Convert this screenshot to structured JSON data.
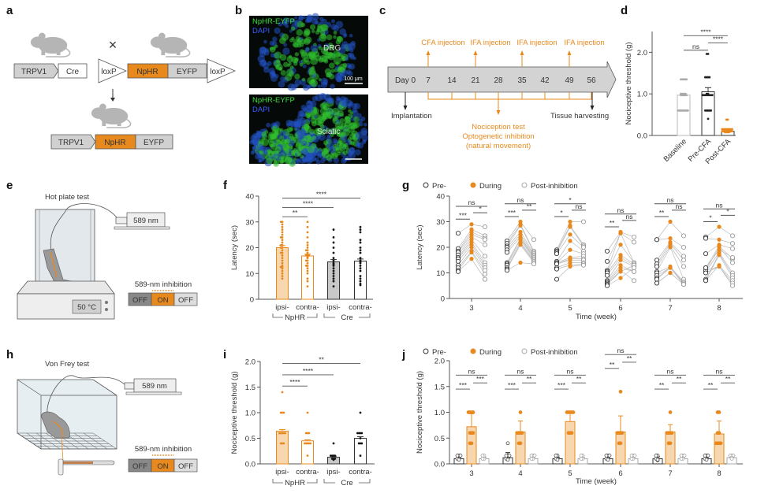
{
  "colors": {
    "orange": "#E8891E",
    "orange_light": "#F6D7B0",
    "dark": "#333333",
    "grey": "#B3B3B3",
    "green_stain": "#3BE03B",
    "blue_stain": "#3A5CFF"
  },
  "panel_labels": {
    "a": "a",
    "b": "b",
    "c": "c",
    "d": "d",
    "e": "e",
    "f": "f",
    "g": "g",
    "h": "h",
    "i": "i",
    "j": "j"
  },
  "panel_a": {
    "row1_promoter": "TRPV1",
    "row1_cre": "Cre",
    "cross": "×",
    "loxp_left": "loxP",
    "nphr": "NpHR",
    "eyfp": "EYFP",
    "loxp_right": "loxP",
    "row2_promoter": "TRPV1",
    "row2_nphr": "NpHR",
    "row2_eyfp": "EYFP"
  },
  "panel_b": {
    "top": {
      "stain1": "NpHR-EYFP",
      "stain2": "DAPI",
      "tissue": "DRG",
      "scale": "100 μm"
    },
    "bottom": {
      "stain1": "NpHR-EYFP",
      "stain2": "DAPI",
      "tissue": "Sciatic"
    }
  },
  "panel_c": {
    "days": [
      "Day 0",
      "7",
      "14",
      "21",
      "28",
      "35",
      "42",
      "49",
      "56"
    ],
    "injections": [
      "CFA injection",
      "IFA injection",
      "IFA injection",
      "IFA injection"
    ],
    "implantation": "Implantation",
    "harvest": "Tissue harvesting",
    "test_lines": [
      "Nociception test",
      "Optogenetic inhibition",
      "(natural movement)"
    ]
  },
  "panel_e": {
    "title": "Hot plate test",
    "laser": "589 nm",
    "temperature": "50 °C",
    "inhibition_label": "589-nm inhibition",
    "switch": [
      "OFF",
      "ON",
      "OFF"
    ],
    "switch_active": 1
  },
  "panel_h": {
    "title": "Von Frey test",
    "laser": "589 nm",
    "inhibition_label": "589-nm inhibition",
    "switch": [
      "OFF",
      "ON",
      "OFF"
    ],
    "switch_active": 1
  },
  "chart_data": [
    {
      "panel": "d",
      "type": "bar",
      "categories": [
        "Baseline",
        "Pre-CFA",
        "Post-CFA"
      ],
      "ylabel": "Nociceptive threshold (g)",
      "ylim": [
        0,
        2.5
      ],
      "yticks": [
        0,
        1,
        2
      ],
      "ytick_labels": [
        "0.0",
        "1.0",
        "2.0"
      ],
      "means": [
        0.97,
        1.05,
        0.1
      ],
      "errors": [
        0.04,
        0.1,
        0.02
      ],
      "styles": [
        "grey",
        "dark",
        "orange"
      ],
      "points": [
        [
          1.35,
          1.35,
          1.35,
          1.35,
          1.35,
          1.0,
          1.0,
          1.0,
          1.0,
          0.97,
          0.97,
          0.97,
          0.97,
          0.97,
          0.6,
          0.6,
          0.6,
          0.6,
          0.6,
          0.6,
          0.6,
          0.6
        ],
        [
          1.96,
          1.96,
          1.4,
          1.4,
          1.4,
          1.4,
          1.0,
          1.0,
          0.97,
          0.97,
          0.97,
          0.97,
          0.97,
          0.97,
          0.97,
          0.97,
          0.6,
          0.6,
          0.6,
          0.6,
          0.6,
          0.4
        ],
        [
          0.38,
          0.38,
          0.15,
          0.15,
          0.15,
          0.15,
          0.15,
          0.15,
          0.15,
          0.15,
          0.1,
          0.1,
          0.1,
          0.1,
          0.1,
          0.1,
          0.1,
          0.1,
          0.08,
          0.08,
          0.08,
          0.08
        ]
      ],
      "significance": [
        {
          "from": 0,
          "to": 1,
          "label": "ns"
        },
        {
          "from": 1,
          "to": 2,
          "label": "****"
        },
        {
          "from": 0,
          "to": 2,
          "label": "****"
        }
      ]
    },
    {
      "panel": "f",
      "type": "bar",
      "categories": [
        "ipsi-",
        "contra-",
        "ipsi-",
        "contra-"
      ],
      "groups": [
        {
          "label": "NpHR",
          "from": 0,
          "to": 1
        },
        {
          "label": "Cre",
          "from": 2,
          "to": 3
        }
      ],
      "ylabel": "Latency (sec)",
      "ylim": [
        0,
        40
      ],
      "yticks": [
        0,
        10,
        20,
        30,
        40
      ],
      "ytick_labels": [
        "0",
        "10",
        "20",
        "30",
        "40"
      ],
      "means": [
        20,
        16.8,
        14.5,
        14.8
      ],
      "errors": [
        0.8,
        0.7,
        0.9,
        0.8
      ],
      "styles": [
        "orange_fill",
        "orange_open",
        "grey_fill",
        "dark_open"
      ],
      "points": [
        [
          30,
          30,
          29,
          28,
          27,
          26,
          25,
          24,
          24,
          23,
          22,
          21,
          21,
          20,
          20,
          19,
          18,
          18,
          17,
          16,
          15,
          14,
          13,
          12.5,
          12.5,
          12,
          11,
          10,
          9,
          8
        ],
        [
          30,
          28,
          26,
          24,
          22,
          21,
          20,
          19,
          19,
          18,
          17,
          17,
          17,
          16.5,
          16,
          15,
          15,
          14,
          13,
          13,
          12,
          11,
          10,
          8,
          7,
          5
        ],
        [
          27,
          24,
          22,
          20,
          18,
          16,
          15,
          14,
          13.5,
          13,
          12,
          11,
          10,
          9,
          8,
          7,
          5
        ],
        [
          28,
          27,
          26,
          23,
          22,
          20,
          19,
          18,
          16,
          15,
          14.5,
          14,
          13,
          12,
          11,
          9,
          8,
          7,
          6,
          5.5
        ]
      ],
      "significance": [
        {
          "from": 0,
          "to": 1,
          "label": "**"
        },
        {
          "from": 0,
          "to": 2,
          "label": "****"
        },
        {
          "from": 0,
          "to": 3,
          "label": "****"
        }
      ]
    },
    {
      "panel": "g",
      "type": "scatter",
      "xlabel": "Time (week)",
      "ylabel": "Latency (sec)",
      "ylim": [
        0,
        40
      ],
      "yticks": [
        0,
        10,
        20,
        30,
        40
      ],
      "ytick_labels": [
        "0",
        "10",
        "20",
        "30",
        "40"
      ],
      "legend": [
        "Pre-",
        "During",
        "Post-inhibition"
      ],
      "legend_position": "top",
      "categories": [
        "3",
        "4",
        "5",
        "6",
        "7",
        "8"
      ],
      "series": [
        {
          "name": "Pre-",
          "values": [
            [
              25.5,
              19.5,
              18.5,
              18,
              17,
              16,
              15.5,
              14.5,
              13,
              12,
              11,
              10.5
            ],
            [
              22.5,
              21.5,
              20.5,
              20,
              19,
              18,
              14,
              13.5,
              13,
              12,
              11.5,
              11
            ],
            [
              19,
              18.5,
              18,
              17.5,
              14.5,
              14,
              14,
              13.5,
              13.5,
              12,
              11.5,
              7.5
            ],
            [
              18.5,
              14.5,
              11,
              10.5,
              10,
              9,
              7,
              6.5,
              6,
              5.5,
              5.5,
              5
            ],
            [
              23,
              23,
              15,
              13.5,
              12.5,
              10.5,
              10,
              9,
              8,
              7.5,
              6,
              6
            ],
            [
              24,
              23.5,
              17.5,
              12,
              11,
              10.5,
              7.5,
              7,
              7,
              11,
              10,
              12
            ]
          ]
        },
        {
          "name": "During",
          "values": [
            [
              29,
              27,
              26,
              25,
              24,
              23,
              22,
              21,
              20,
              18.5,
              18,
              15.5
            ],
            [
              30,
              29,
              28.5,
              26,
              25,
              24,
              23.5,
              23,
              22,
              21.5,
              21,
              14
            ],
            [
              30,
              28.5,
              28,
              25,
              22.5,
              19,
              16,
              15.5,
              15,
              14,
              13,
              12.5
            ],
            [
              26,
              25.5,
              25.5,
              21,
              17,
              16,
              15,
              13,
              12,
              11,
              10.5,
              8
            ],
            [
              30,
              23.5,
              22,
              21.5,
              20.5,
              20,
              12.5,
              12,
              12,
              12,
              10,
              10
            ],
            [
              28,
              23,
              21,
              20.5,
              20,
              18,
              17.5,
              17,
              13,
              12.5,
              12.5,
              19
            ]
          ]
        },
        {
          "name": "Post-inhibition",
          "values": [
            [
              28,
              24.5,
              23.5,
              23,
              21,
              16.5,
              14,
              13,
              12,
              11,
              9.5,
              7.5
            ],
            [
              23,
              18.5,
              18,
              17.5,
              17,
              16.5,
              16,
              15.5,
              15,
              14.5,
              14,
              13.5
            ],
            [
              30,
              21,
              20.5,
              20,
              18.5,
              17.5,
              16.5,
              15.5,
              15,
              14,
              13.5,
              13
            ],
            [
              24,
              22,
              14,
              14,
              13.5,
              13,
              12.5,
              10.5,
              10.5,
              7,
              13,
              12
            ],
            [
              24.5,
              20,
              16.5,
              15,
              12.5,
              7.5,
              6.5,
              6,
              6,
              5.5,
              5.5,
              5.5
            ],
            [
              24.5,
              21.5,
              19.5,
              15.5,
              14,
              10,
              9,
              8,
              7,
              6,
              5,
              16
            ]
          ]
        }
      ],
      "significance": [
        [
          "***",
          "*",
          "ns"
        ],
        [
          "***",
          "**",
          "ns"
        ],
        [
          "*",
          "ns",
          "*"
        ],
        [
          "**",
          "ns",
          "ns"
        ],
        [
          "**",
          "ns",
          "ns"
        ],
        [
          "*",
          "*",
          "ns"
        ]
      ],
      "significance_pairs": [
        "Pre- vs During",
        "During vs Post-inhibition",
        "Pre- vs Post-inhibition"
      ]
    },
    {
      "panel": "i",
      "type": "bar",
      "categories": [
        "ipsi-",
        "contra-",
        "ipsi-",
        "contra-"
      ],
      "groups": [
        {
          "label": "NpHR",
          "from": 0,
          "to": 1
        },
        {
          "label": "Cre",
          "from": 2,
          "to": 3
        }
      ],
      "ylabel": "Nociceptive threshold (g)",
      "ylim": [
        0,
        2.0
      ],
      "yticks": [
        0,
        0.5,
        1.0,
        1.5,
        2.0
      ],
      "ytick_labels": [
        "0.0",
        "0.5",
        "1.0",
        "1.5",
        "2.0"
      ],
      "means": [
        0.64,
        0.45,
        0.13,
        0.5
      ],
      "errors": [
        0.03,
        0.02,
        0.02,
        0.03
      ],
      "styles": [
        "orange_fill",
        "orange_open",
        "grey_fill",
        "dark_open"
      ],
      "points": [
        [
          1.4,
          1.0,
          1.0,
          1.0,
          0.6,
          0.6,
          0.6,
          0.6,
          0.6,
          0.4,
          0.4,
          0.4
        ],
        [
          1.0,
          0.6,
          0.6,
          0.6,
          0.4,
          0.4,
          0.4,
          0.4,
          0.4,
          0.16
        ],
        [
          0.4,
          0.16,
          0.16,
          0.16,
          0.16,
          0.1,
          0.1,
          0.1,
          0.08
        ],
        [
          1.0,
          0.6,
          0.6,
          0.6,
          0.6,
          0.4,
          0.4,
          0.4,
          0.5,
          0.16
        ]
      ],
      "significance": [
        {
          "from": 0,
          "to": 1,
          "label": "****"
        },
        {
          "from": 0,
          "to": 2,
          "label": "****"
        },
        {
          "from": 0,
          "to": 3,
          "label": "**"
        }
      ]
    },
    {
      "panel": "j",
      "type": "bar",
      "xlabel": "Time (week)",
      "ylabel": "Nociceptive threshold (g)",
      "ylim": [
        0,
        2.0
      ],
      "yticks": [
        0,
        0.5,
        1.0,
        1.5,
        2.0
      ],
      "ytick_labels": [
        "0.0",
        "0.5",
        "1.0",
        "1.5",
        "2.0"
      ],
      "legend": [
        "Pre-",
        "During",
        "Post-inhibition"
      ],
      "legend_position": "top",
      "categories": [
        "3",
        "4",
        "5",
        "6",
        "7",
        "8"
      ],
      "series": [
        {
          "name": "Pre-",
          "means": [
            0.1,
            0.12,
            0.1,
            0.1,
            0.1,
            0.1
          ],
          "errors": [
            0.03,
            0.1,
            0.03,
            0.03,
            0.04,
            0.03
          ],
          "points": [
            [
              0.16,
              0.16,
              0.16,
              0.1,
              0.1,
              0.08
            ],
            [
              0.4,
              0.16,
              0.16,
              0.16,
              0.1,
              0.1,
              0.08
            ],
            [
              0.16,
              0.16,
              0.1,
              0.1,
              0.08
            ],
            [
              0.16,
              0.16,
              0.16,
              0.1,
              0.1,
              0.08
            ],
            [
              0.16,
              0.16,
              0.1,
              0.1,
              0.07,
              0.08
            ],
            [
              0.16,
              0.16,
              0.16,
              0.1,
              0.1,
              0.08
            ]
          ]
        },
        {
          "name": "During",
          "means": [
            0.72,
            0.62,
            0.82,
            0.62,
            0.62,
            0.58
          ],
          "errors": [
            0.25,
            0.21,
            0.2,
            0.31,
            0.14,
            0.25
          ],
          "points": [
            [
              1,
              1,
              1,
              1,
              0.6,
              0.6,
              0.6,
              0.4,
              0.4
            ],
            [
              1,
              0.6,
              0.6,
              0.6,
              0.6,
              0.4,
              0.4
            ],
            [
              1,
              1,
              1,
              1,
              1,
              0.6,
              0.6,
              0.6
            ],
            [
              1.4,
              0.6,
              0.6,
              0.6,
              0.6,
              0.4,
              0.4
            ],
            [
              1,
              0.6,
              0.6,
              0.6,
              0.6,
              0.4,
              0.4
            ],
            [
              1,
              1,
              0.6,
              0.6,
              0.4,
              0.4,
              0.4,
              0.4
            ]
          ]
        },
        {
          "name": "Post-inhibition",
          "means": [
            0.1,
            0.1,
            0.1,
            0.1,
            0.1,
            0.12
          ],
          "errors": [
            0.03,
            0.03,
            0.03,
            0.03,
            0.03,
            0.03
          ],
          "points": [
            [
              0.16,
              0.16,
              0.1,
              0.1
            ],
            [
              0.16,
              0.16,
              0.16,
              0.1,
              0.1
            ],
            [
              0.16,
              0.16,
              0.1,
              0.1
            ],
            [
              0.16,
              0.16,
              0.16,
              0.1,
              0.1
            ],
            [
              0.16,
              0.16,
              0.16,
              0.1,
              0.1
            ],
            [
              0.16,
              0.16,
              0.16,
              0.12,
              0.1
            ]
          ]
        }
      ],
      "significance": [
        [
          "***",
          "***",
          "ns"
        ],
        [
          "***",
          "**",
          "ns"
        ],
        [
          "***",
          "**",
          "ns"
        ],
        [
          "**",
          "**",
          "ns"
        ],
        [
          "**",
          "**",
          "ns"
        ],
        [
          "**",
          "**",
          "ns"
        ]
      ],
      "significance_pairs": [
        "Pre- vs During",
        "During vs Post-inhibition",
        "Pre- vs Post-inhibition"
      ]
    }
  ]
}
